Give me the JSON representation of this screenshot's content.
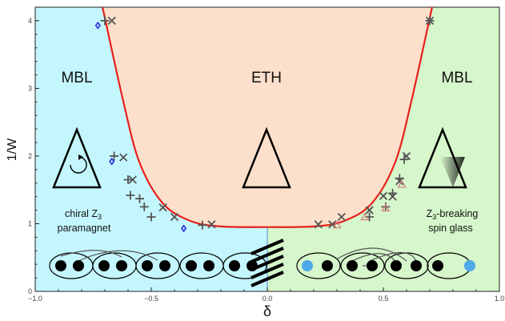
{
  "chart_data": {
    "type": "scatter",
    "xlabel": "δ",
    "ylabel": "1/W",
    "xlim": [
      -1.0,
      1.0
    ],
    "ylim": [
      0,
      4.2
    ],
    "x_ticks": [
      "−1.0",
      "−0.5",
      "0.0",
      "0.5",
      "1.0"
    ],
    "y_ticks": [
      "0",
      "1",
      "2",
      "3",
      "4"
    ],
    "colors": {
      "left_region": "#c4f6fd",
      "center_region": "#fde0cb",
      "right_region": "#d6f6cb",
      "boundary": "#e8201c",
      "cross_marker": "#555555",
      "diamond_marker": "#2a2ae0",
      "triangle_marker": "#d97c7c",
      "blue_site": "#4fa8e8",
      "black_site": "#000000"
    },
    "regions": [
      {
        "label": "MBL",
        "phase": "chiral Z3 paramagnet",
        "side": "left"
      },
      {
        "label": "ETH",
        "side": "center"
      },
      {
        "label": "MBL",
        "phase": "Z3-breaking spin glass",
        "side": "right"
      }
    ],
    "captions": {
      "left": [
        "chiral Z",
        "3",
        "paramagnet"
      ],
      "right": [
        "Z",
        "3",
        "-breaking",
        "spin glass"
      ]
    },
    "boundary_curve": {
      "note_min": 0.95,
      "points": [
        [
          -0.71,
          4.2
        ],
        [
          -0.62,
          2.8
        ],
        [
          -0.55,
          1.9
        ],
        [
          -0.45,
          1.3
        ],
        [
          -0.33,
          1.04
        ],
        [
          -0.2,
          0.96
        ],
        [
          0.0,
          0.95
        ],
        [
          0.2,
          0.96
        ],
        [
          0.33,
          1.04
        ],
        [
          0.45,
          1.3
        ],
        [
          0.55,
          1.9
        ],
        [
          0.62,
          2.8
        ],
        [
          0.71,
          4.2
        ]
      ]
    },
    "series": [
      {
        "marker": "x",
        "values": [
          [
            -0.67,
            4.0
          ],
          [
            -0.62,
            1.98
          ],
          [
            -0.58,
            1.65
          ],
          [
            -0.45,
            1.24
          ],
          [
            -0.4,
            1.1
          ],
          [
            -0.24,
            0.99
          ],
          [
            0.22,
            0.99
          ],
          [
            0.28,
            0.99
          ],
          [
            0.32,
            1.1
          ],
          [
            0.44,
            1.2
          ],
          [
            0.5,
            1.41
          ],
          [
            0.54,
            1.4
          ],
          [
            0.57,
            1.63
          ],
          [
            0.6,
            2.0
          ],
          [
            0.7,
            4.0
          ]
        ]
      },
      {
        "marker": "+",
        "values": [
          [
            -0.7,
            4.0
          ],
          [
            -0.66,
            2.0
          ],
          [
            -0.6,
            1.65
          ],
          [
            -0.59,
            1.42
          ],
          [
            -0.55,
            1.37
          ],
          [
            -0.53,
            1.25
          ],
          [
            -0.5,
            1.1
          ],
          [
            -0.28,
            0.98
          ],
          [
            0.44,
            1.1
          ],
          [
            0.51,
            1.25
          ],
          [
            0.54,
            1.45
          ],
          [
            0.57,
            1.67
          ],
          [
            0.59,
            1.95
          ],
          [
            0.7,
            4.0
          ]
        ]
      },
      {
        "marker": "diamond",
        "values": [
          [
            -0.73,
            3.93
          ],
          [
            -0.67,
            1.92
          ],
          [
            -0.36,
            0.93
          ]
        ]
      },
      {
        "marker": "triangle",
        "values": [
          [
            0.3,
            0.98
          ],
          [
            0.42,
            1.1
          ],
          [
            0.51,
            1.23
          ],
          [
            0.58,
            1.58
          ]
        ]
      }
    ]
  }
}
